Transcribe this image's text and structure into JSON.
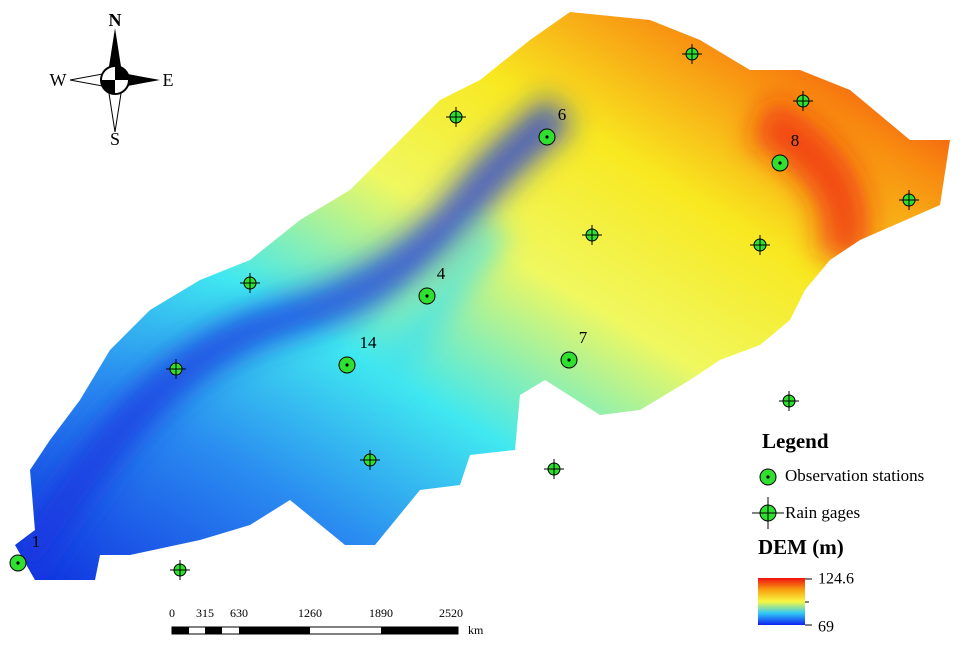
{
  "compass": {
    "north": "N",
    "south": "S",
    "east": "E",
    "west": "W"
  },
  "stations": [
    {
      "label": "1"
    },
    {
      "label": "14"
    },
    {
      "label": "4"
    },
    {
      "label": "7"
    },
    {
      "label": "6"
    },
    {
      "label": "8"
    }
  ],
  "legend": {
    "title": "Legend",
    "items": [
      "Observation stations",
      "Rain gages"
    ]
  },
  "dem": {
    "title": "DEM (m)",
    "max": 124.6,
    "min": 69
  },
  "scale_bar": {
    "ticks": [
      0,
      315,
      630,
      1260,
      1890,
      2520
    ],
    "unit": "km"
  }
}
